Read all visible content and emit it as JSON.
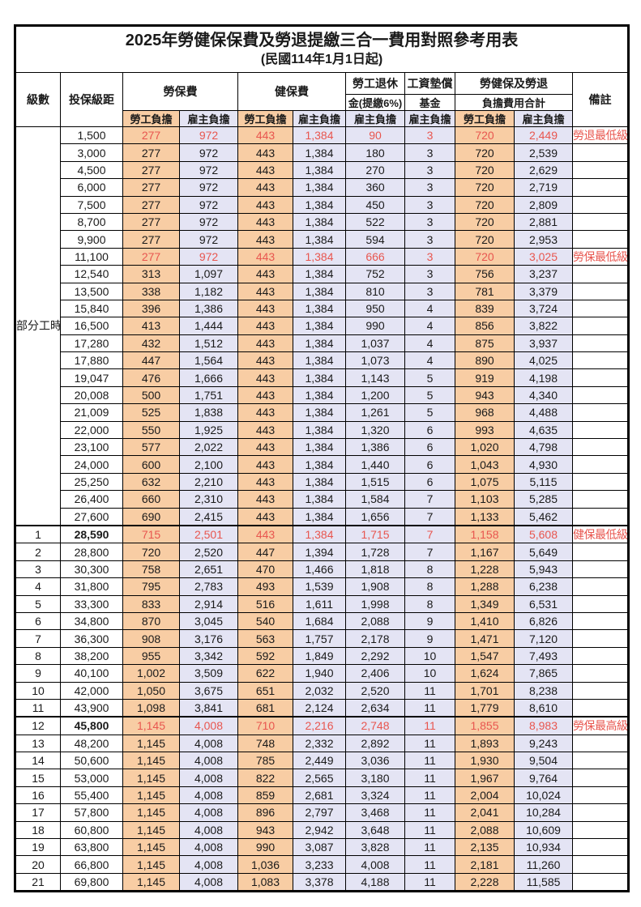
{
  "title": "2025年勞健保保費及勞退提繳三合一費用對照參考用表",
  "subtitle": "(民國114年1月1日起)",
  "header": {
    "level": "級數",
    "salary": "投保級距",
    "labor_ins": "勞保費",
    "health_ins": "健保費",
    "pension_line1": "勞工退休",
    "pension_line2": "金(提繳6%)",
    "wage_fund_line1": "工資墊償",
    "wage_fund_line2": "基金",
    "total_line1": "勞健保及勞退",
    "total_line2": "負擔費用合計",
    "note": "備註",
    "employee": "勞工負擔",
    "employer": "雇主負擔"
  },
  "part_time_label": "部分工時",
  "colors": {
    "employee_bg": "#F8CDA4",
    "employer_bg": "#E4E4F4",
    "highlight_red": "#E8564F",
    "border": "#000000"
  },
  "rows": [
    {
      "level": "",
      "salary": "1,500",
      "values": [
        "277",
        "972",
        "443",
        "1,384",
        "90",
        "3",
        "720",
        "2,449"
      ],
      "note": "勞退最低級距",
      "highlight": true,
      "bold_salary": false
    },
    {
      "level": "",
      "salary": "3,000",
      "values": [
        "277",
        "972",
        "443",
        "1,384",
        "180",
        "3",
        "720",
        "2,539"
      ],
      "note": "",
      "highlight": false,
      "bold_salary": false
    },
    {
      "level": "",
      "salary": "4,500",
      "values": [
        "277",
        "972",
        "443",
        "1,384",
        "270",
        "3",
        "720",
        "2,629"
      ],
      "note": "",
      "highlight": false,
      "bold_salary": false
    },
    {
      "level": "",
      "salary": "6,000",
      "values": [
        "277",
        "972",
        "443",
        "1,384",
        "360",
        "3",
        "720",
        "2,719"
      ],
      "note": "",
      "highlight": false,
      "bold_salary": false
    },
    {
      "level": "",
      "salary": "7,500",
      "values": [
        "277",
        "972",
        "443",
        "1,384",
        "450",
        "3",
        "720",
        "2,809"
      ],
      "note": "",
      "highlight": false,
      "bold_salary": false
    },
    {
      "level": "",
      "salary": "8,700",
      "values": [
        "277",
        "972",
        "443",
        "1,384",
        "522",
        "3",
        "720",
        "2,881"
      ],
      "note": "",
      "highlight": false,
      "bold_salary": false
    },
    {
      "level": "",
      "salary": "9,900",
      "values": [
        "277",
        "972",
        "443",
        "1,384",
        "594",
        "3",
        "720",
        "2,953"
      ],
      "note": "",
      "highlight": false,
      "bold_salary": false
    },
    {
      "level": "",
      "salary": "11,100",
      "values": [
        "277",
        "972",
        "443",
        "1,384",
        "666",
        "3",
        "720",
        "3,025"
      ],
      "note": "勞保最低級距",
      "highlight": true,
      "bold_salary": false
    },
    {
      "level": "",
      "salary": "12,540",
      "values": [
        "313",
        "1,097",
        "443",
        "1,384",
        "752",
        "3",
        "756",
        "3,237"
      ],
      "note": "",
      "highlight": false,
      "bold_salary": false
    },
    {
      "level": "",
      "salary": "13,500",
      "values": [
        "338",
        "1,182",
        "443",
        "1,384",
        "810",
        "3",
        "781",
        "3,379"
      ],
      "note": "",
      "highlight": false,
      "bold_salary": false
    },
    {
      "level": "",
      "salary": "15,840",
      "values": [
        "396",
        "1,386",
        "443",
        "1,384",
        "950",
        "4",
        "839",
        "3,724"
      ],
      "note": "",
      "highlight": false,
      "bold_salary": false
    },
    {
      "level": "",
      "salary": "16,500",
      "values": [
        "413",
        "1,444",
        "443",
        "1,384",
        "990",
        "4",
        "856",
        "3,822"
      ],
      "note": "",
      "highlight": false,
      "bold_salary": false
    },
    {
      "level": "",
      "salary": "17,280",
      "values": [
        "432",
        "1,512",
        "443",
        "1,384",
        "1,037",
        "4",
        "875",
        "3,937"
      ],
      "note": "",
      "highlight": false,
      "bold_salary": false
    },
    {
      "level": "",
      "salary": "17,880",
      "values": [
        "447",
        "1,564",
        "443",
        "1,384",
        "1,073",
        "4",
        "890",
        "4,025"
      ],
      "note": "",
      "highlight": false,
      "bold_salary": false
    },
    {
      "level": "",
      "salary": "19,047",
      "values": [
        "476",
        "1,666",
        "443",
        "1,384",
        "1,143",
        "5",
        "919",
        "4,198"
      ],
      "note": "",
      "highlight": false,
      "bold_salary": false
    },
    {
      "level": "",
      "salary": "20,008",
      "values": [
        "500",
        "1,751",
        "443",
        "1,384",
        "1,200",
        "5",
        "943",
        "4,340"
      ],
      "note": "",
      "highlight": false,
      "bold_salary": false
    },
    {
      "level": "",
      "salary": "21,009",
      "values": [
        "525",
        "1,838",
        "443",
        "1,384",
        "1,261",
        "5",
        "968",
        "4,488"
      ],
      "note": "",
      "highlight": false,
      "bold_salary": false
    },
    {
      "level": "",
      "salary": "22,000",
      "values": [
        "550",
        "1,925",
        "443",
        "1,384",
        "1,320",
        "6",
        "993",
        "4,635"
      ],
      "note": "",
      "highlight": false,
      "bold_salary": false
    },
    {
      "level": "",
      "salary": "23,100",
      "values": [
        "577",
        "2,022",
        "443",
        "1,384",
        "1,386",
        "6",
        "1,020",
        "4,798"
      ],
      "note": "",
      "highlight": false,
      "bold_salary": false
    },
    {
      "level": "",
      "salary": "24,000",
      "values": [
        "600",
        "2,100",
        "443",
        "1,384",
        "1,440",
        "6",
        "1,043",
        "4,930"
      ],
      "note": "",
      "highlight": false,
      "bold_salary": false
    },
    {
      "level": "",
      "salary": "25,250",
      "values": [
        "632",
        "2,210",
        "443",
        "1,384",
        "1,515",
        "6",
        "1,075",
        "5,115"
      ],
      "note": "",
      "highlight": false,
      "bold_salary": false
    },
    {
      "level": "",
      "salary": "26,400",
      "values": [
        "660",
        "2,310",
        "443",
        "1,384",
        "1,584",
        "7",
        "1,103",
        "5,285"
      ],
      "note": "",
      "highlight": false,
      "bold_salary": false
    },
    {
      "level": "",
      "salary": "27,600",
      "values": [
        "690",
        "2,415",
        "443",
        "1,384",
        "1,656",
        "7",
        "1,133",
        "5,462"
      ],
      "note": "",
      "highlight": false,
      "bold_salary": false
    },
    {
      "level": "1",
      "salary": "28,590",
      "values": [
        "715",
        "2,501",
        "443",
        "1,384",
        "1,715",
        "7",
        "1,158",
        "5,608"
      ],
      "note": "健保最低級距",
      "highlight": true,
      "bold_salary": true
    },
    {
      "level": "2",
      "salary": "28,800",
      "values": [
        "720",
        "2,520",
        "447",
        "1,394",
        "1,728",
        "7",
        "1,167",
        "5,649"
      ],
      "note": "",
      "highlight": false,
      "bold_salary": false
    },
    {
      "level": "3",
      "salary": "30,300",
      "values": [
        "758",
        "2,651",
        "470",
        "1,466",
        "1,818",
        "8",
        "1,228",
        "5,943"
      ],
      "note": "",
      "highlight": false,
      "bold_salary": false
    },
    {
      "level": "4",
      "salary": "31,800",
      "values": [
        "795",
        "2,783",
        "493",
        "1,539",
        "1,908",
        "8",
        "1,288",
        "6,238"
      ],
      "note": "",
      "highlight": false,
      "bold_salary": false
    },
    {
      "level": "5",
      "salary": "33,300",
      "values": [
        "833",
        "2,914",
        "516",
        "1,611",
        "1,998",
        "8",
        "1,349",
        "6,531"
      ],
      "note": "",
      "highlight": false,
      "bold_salary": false
    },
    {
      "level": "6",
      "salary": "34,800",
      "values": [
        "870",
        "3,045",
        "540",
        "1,684",
        "2,088",
        "9",
        "1,410",
        "6,826"
      ],
      "note": "",
      "highlight": false,
      "bold_salary": false
    },
    {
      "level": "7",
      "salary": "36,300",
      "values": [
        "908",
        "3,176",
        "563",
        "1,757",
        "2,178",
        "9",
        "1,471",
        "7,120"
      ],
      "note": "",
      "highlight": false,
      "bold_salary": false
    },
    {
      "level": "8",
      "salary": "38,200",
      "values": [
        "955",
        "3,342",
        "592",
        "1,849",
        "2,292",
        "10",
        "1,547",
        "7,493"
      ],
      "note": "",
      "highlight": false,
      "bold_salary": false
    },
    {
      "level": "9",
      "salary": "40,100",
      "values": [
        "1,002",
        "3,509",
        "622",
        "1,940",
        "2,406",
        "10",
        "1,624",
        "7,865"
      ],
      "note": "",
      "highlight": false,
      "bold_salary": false
    },
    {
      "level": "10",
      "salary": "42,000",
      "values": [
        "1,050",
        "3,675",
        "651",
        "2,032",
        "2,520",
        "11",
        "1,701",
        "8,238"
      ],
      "note": "",
      "highlight": false,
      "bold_salary": false
    },
    {
      "level": "11",
      "salary": "43,900",
      "values": [
        "1,098",
        "3,841",
        "681",
        "2,124",
        "2,634",
        "11",
        "1,779",
        "8,610"
      ],
      "note": "",
      "highlight": false,
      "bold_salary": false
    },
    {
      "level": "12",
      "salary": "45,800",
      "values": [
        "1,145",
        "4,008",
        "710",
        "2,216",
        "2,748",
        "11",
        "1,855",
        "8,983"
      ],
      "note": "勞保最高級距",
      "highlight": true,
      "bold_salary": true
    },
    {
      "level": "13",
      "salary": "48,200",
      "values": [
        "1,145",
        "4,008",
        "748",
        "2,332",
        "2,892",
        "11",
        "1,893",
        "9,243"
      ],
      "note": "",
      "highlight": false,
      "bold_salary": false
    },
    {
      "level": "14",
      "salary": "50,600",
      "values": [
        "1,145",
        "4,008",
        "785",
        "2,449",
        "3,036",
        "11",
        "1,930",
        "9,504"
      ],
      "note": "",
      "highlight": false,
      "bold_salary": false
    },
    {
      "level": "15",
      "salary": "53,000",
      "values": [
        "1,145",
        "4,008",
        "822",
        "2,565",
        "3,180",
        "11",
        "1,967",
        "9,764"
      ],
      "note": "",
      "highlight": false,
      "bold_salary": false
    },
    {
      "level": "16",
      "salary": "55,400",
      "values": [
        "1,145",
        "4,008",
        "859",
        "2,681",
        "3,324",
        "11",
        "2,004",
        "10,024"
      ],
      "note": "",
      "highlight": false,
      "bold_salary": false
    },
    {
      "level": "17",
      "salary": "57,800",
      "values": [
        "1,145",
        "4,008",
        "896",
        "2,797",
        "3,468",
        "11",
        "2,041",
        "10,284"
      ],
      "note": "",
      "highlight": false,
      "bold_salary": false
    },
    {
      "level": "18",
      "salary": "60,800",
      "values": [
        "1,145",
        "4,008",
        "943",
        "2,942",
        "3,648",
        "11",
        "2,088",
        "10,609"
      ],
      "note": "",
      "highlight": false,
      "bold_salary": false
    },
    {
      "level": "19",
      "salary": "63,800",
      "values": [
        "1,145",
        "4,008",
        "990",
        "3,087",
        "3,828",
        "11",
        "2,135",
        "10,934"
      ],
      "note": "",
      "highlight": false,
      "bold_salary": false
    },
    {
      "level": "20",
      "salary": "66,800",
      "values": [
        "1,145",
        "4,008",
        "1,036",
        "3,233",
        "4,008",
        "11",
        "2,181",
        "11,260"
      ],
      "note": "",
      "highlight": false,
      "bold_salary": false
    },
    {
      "level": "21",
      "salary": "69,800",
      "values": [
        "1,145",
        "4,008",
        "1,083",
        "3,378",
        "4,188",
        "11",
        "2,228",
        "11,585"
      ],
      "note": "",
      "highlight": false,
      "bold_salary": false
    }
  ]
}
